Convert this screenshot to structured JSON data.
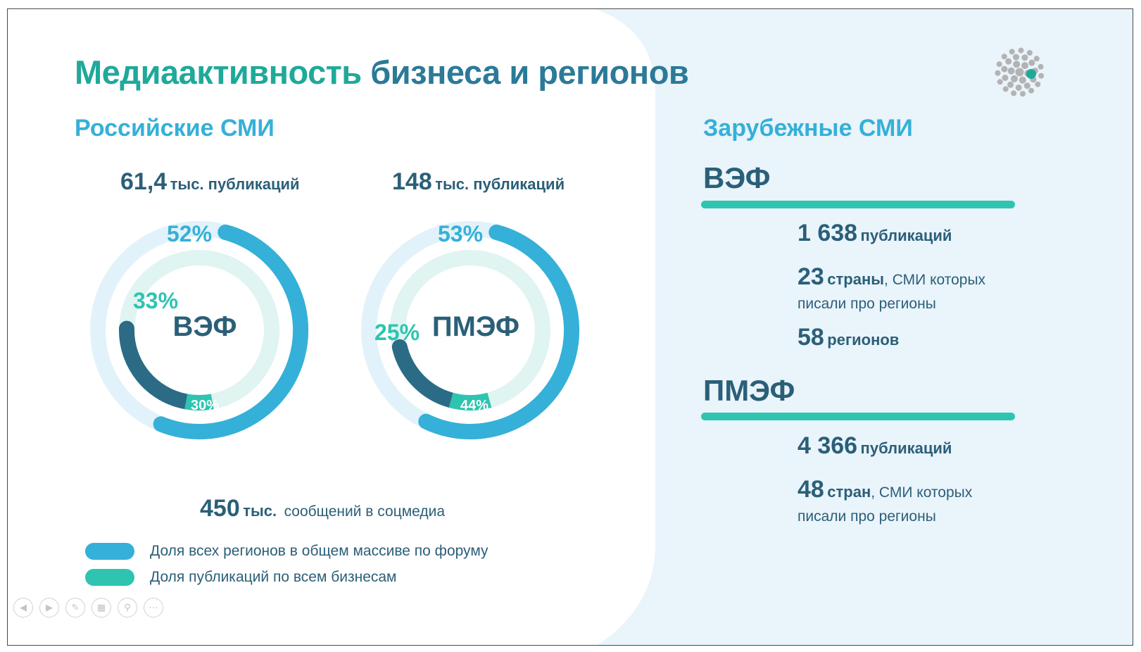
{
  "title": {
    "part1": "Медиаактивность",
    "part2": "бизнеса и регионов"
  },
  "russian": {
    "heading": "Российские СМИ",
    "veff": {
      "count": "61,4",
      "count_unit": "тыс. публикаций",
      "center_label": "ВЭФ",
      "regions_pct": "52%",
      "business_pct": "33%",
      "inner_pct": "30%",
      "regions_share": 52,
      "business_share": 33,
      "inner_share": 30
    },
    "pmef": {
      "count": "148",
      "count_unit": "тыс. публикаций",
      "center_label": "ПМЭФ",
      "regions_pct": "53%",
      "business_pct": "25%",
      "inner_pct": "44%",
      "regions_share": 53,
      "business_share": 25,
      "inner_share": 44
    },
    "social": {
      "num": "450",
      "unit": "тыс.",
      "text": "сообщений в соцмедиа"
    }
  },
  "legend": [
    {
      "label": "Доля всех регионов в общем массиве по форуму",
      "color": "#35b0d8"
    },
    {
      "label": "Доля публикаций по всем бизнесам",
      "color": "#2ec4b0"
    }
  ],
  "foreign": {
    "heading": "Зарубежные СМИ",
    "veff": {
      "label": "ВЭФ",
      "pubs_num": "1 638",
      "pubs_text": "публикаций",
      "countries_num": "23",
      "countries_bold": "страны",
      "countries_text": ", СМИ которых",
      "countries_line2": "писали про регионы",
      "regions_num": "58",
      "regions_text": "регионов"
    },
    "pmef": {
      "label": "ПМЭФ",
      "pubs_num": "4 366",
      "pubs_text": "публикаций",
      "countries_num": "48",
      "countries_bold": "стран",
      "countries_text": ", СМИ которых",
      "countries_line2": "писали про регионы"
    }
  },
  "colors": {
    "accent_blue": "#35b0d8",
    "accent_teal": "#2ec4b0",
    "dark": "#2b5f78",
    "panel": "#e9f4fb"
  },
  "navbar": [
    "prev-icon",
    "next-icon",
    "pen-icon",
    "slides-icon",
    "zoom-icon",
    "more-icon"
  ]
}
